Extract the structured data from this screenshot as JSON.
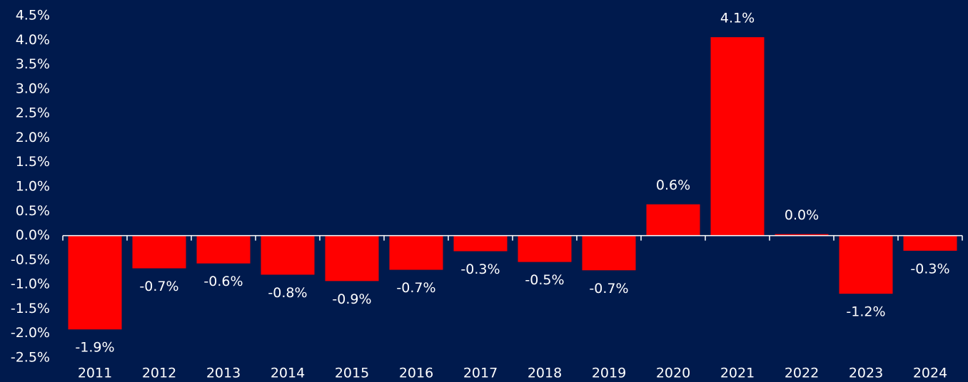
{
  "chart_data": {
    "type": "bar",
    "categories": [
      "2011",
      "2012",
      "2013",
      "2014",
      "2015",
      "2016",
      "2017",
      "2018",
      "2019",
      "2020",
      "2021",
      "2022",
      "2023",
      "2024"
    ],
    "values": [
      -1.92,
      -0.67,
      -0.57,
      -0.8,
      -0.93,
      -0.7,
      -0.32,
      -0.54,
      -0.71,
      0.64,
      4.06,
      0.03,
      -1.19,
      -0.31
    ],
    "value_labels": [
      "-1.9%",
      "-0.7%",
      "-0.6%",
      "-0.8%",
      "-0.9%",
      "-0.7%",
      "-0.3%",
      "-0.5%",
      "-0.7%",
      "0.6%",
      "4.1%",
      "0.0%",
      "-1.2%",
      "-0.3%"
    ],
    "color": "#ff0000",
    "ylim": [
      -2.5,
      4.5
    ],
    "yticks": [
      {
        "value": -2.5,
        "label": "-2.5%"
      },
      {
        "value": -2,
        "label": "-2.0%"
      },
      {
        "value": -1.5,
        "label": "-1.5%"
      },
      {
        "value": -1,
        "label": "-1.0%"
      },
      {
        "value": -0.5,
        "label": "-0.5%"
      },
      {
        "value": 0,
        "label": "0.0%"
      },
      {
        "value": 0.5,
        "label": "0.5%"
      },
      {
        "value": 1,
        "label": "1.0%"
      },
      {
        "value": 1.5,
        "label": "1.5%"
      },
      {
        "value": 2,
        "label": "2.0%"
      },
      {
        "value": 2.5,
        "label": "2.5%"
      },
      {
        "value": 3,
        "label": "3.0%"
      },
      {
        "value": 3.5,
        "label": "3.5%"
      },
      {
        "value": 4,
        "label": "4.0%"
      },
      {
        "value": 4.5,
        "label": "4.5%"
      }
    ],
    "grid": false
  }
}
